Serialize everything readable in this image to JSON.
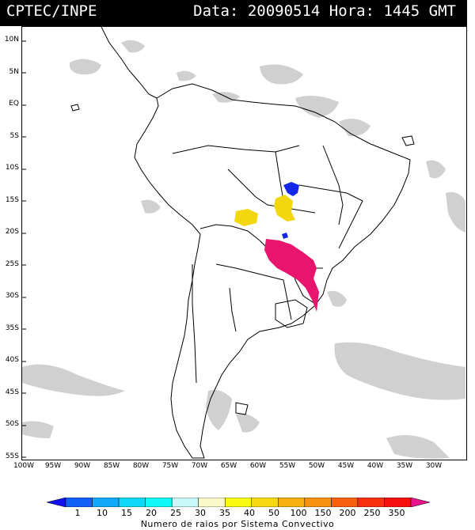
{
  "header": {
    "source": "CPTEC/INPE",
    "date_label": "Data:",
    "date_value": "20090514",
    "time_label": "Hora:",
    "time_value": "1445",
    "timezone": "GMT"
  },
  "map": {
    "lat_ticks": [
      "10N",
      "5N",
      "EQ",
      "5S",
      "10S",
      "15S",
      "20S",
      "25S",
      "30S",
      "35S",
      "40S",
      "45S",
      "50S",
      "55S"
    ],
    "lon_ticks": [
      "100W",
      "95W",
      "90W",
      "85W",
      "80W",
      "75W",
      "70W",
      "65W",
      "60W",
      "55W",
      "50W",
      "45W",
      "40W",
      "35W",
      "30W"
    ],
    "colors": {
      "cloud": "#c8c8c8",
      "land_border": "#000000",
      "yellow_systems": "#f2d60e",
      "blue_systems": "#1426e8",
      "magenta_system": "#e8146e"
    }
  },
  "colorbar": {
    "title": "Numero de raios por Sistema Convectivo",
    "labels": [
      "1",
      "10",
      "15",
      "20",
      "25",
      "30",
      "35",
      "40",
      "50",
      "100",
      "150",
      "200",
      "250",
      "350"
    ],
    "colors": [
      "#1010f0",
      "#1060f8",
      "#10a8f8",
      "#10d8f8",
      "#10f8f8",
      "#c8f8f8",
      "#f8f8c8",
      "#f8f810",
      "#f8d810",
      "#f8b010",
      "#f89010",
      "#f86010",
      "#f83010",
      "#f81010",
      "#e8148c"
    ]
  }
}
